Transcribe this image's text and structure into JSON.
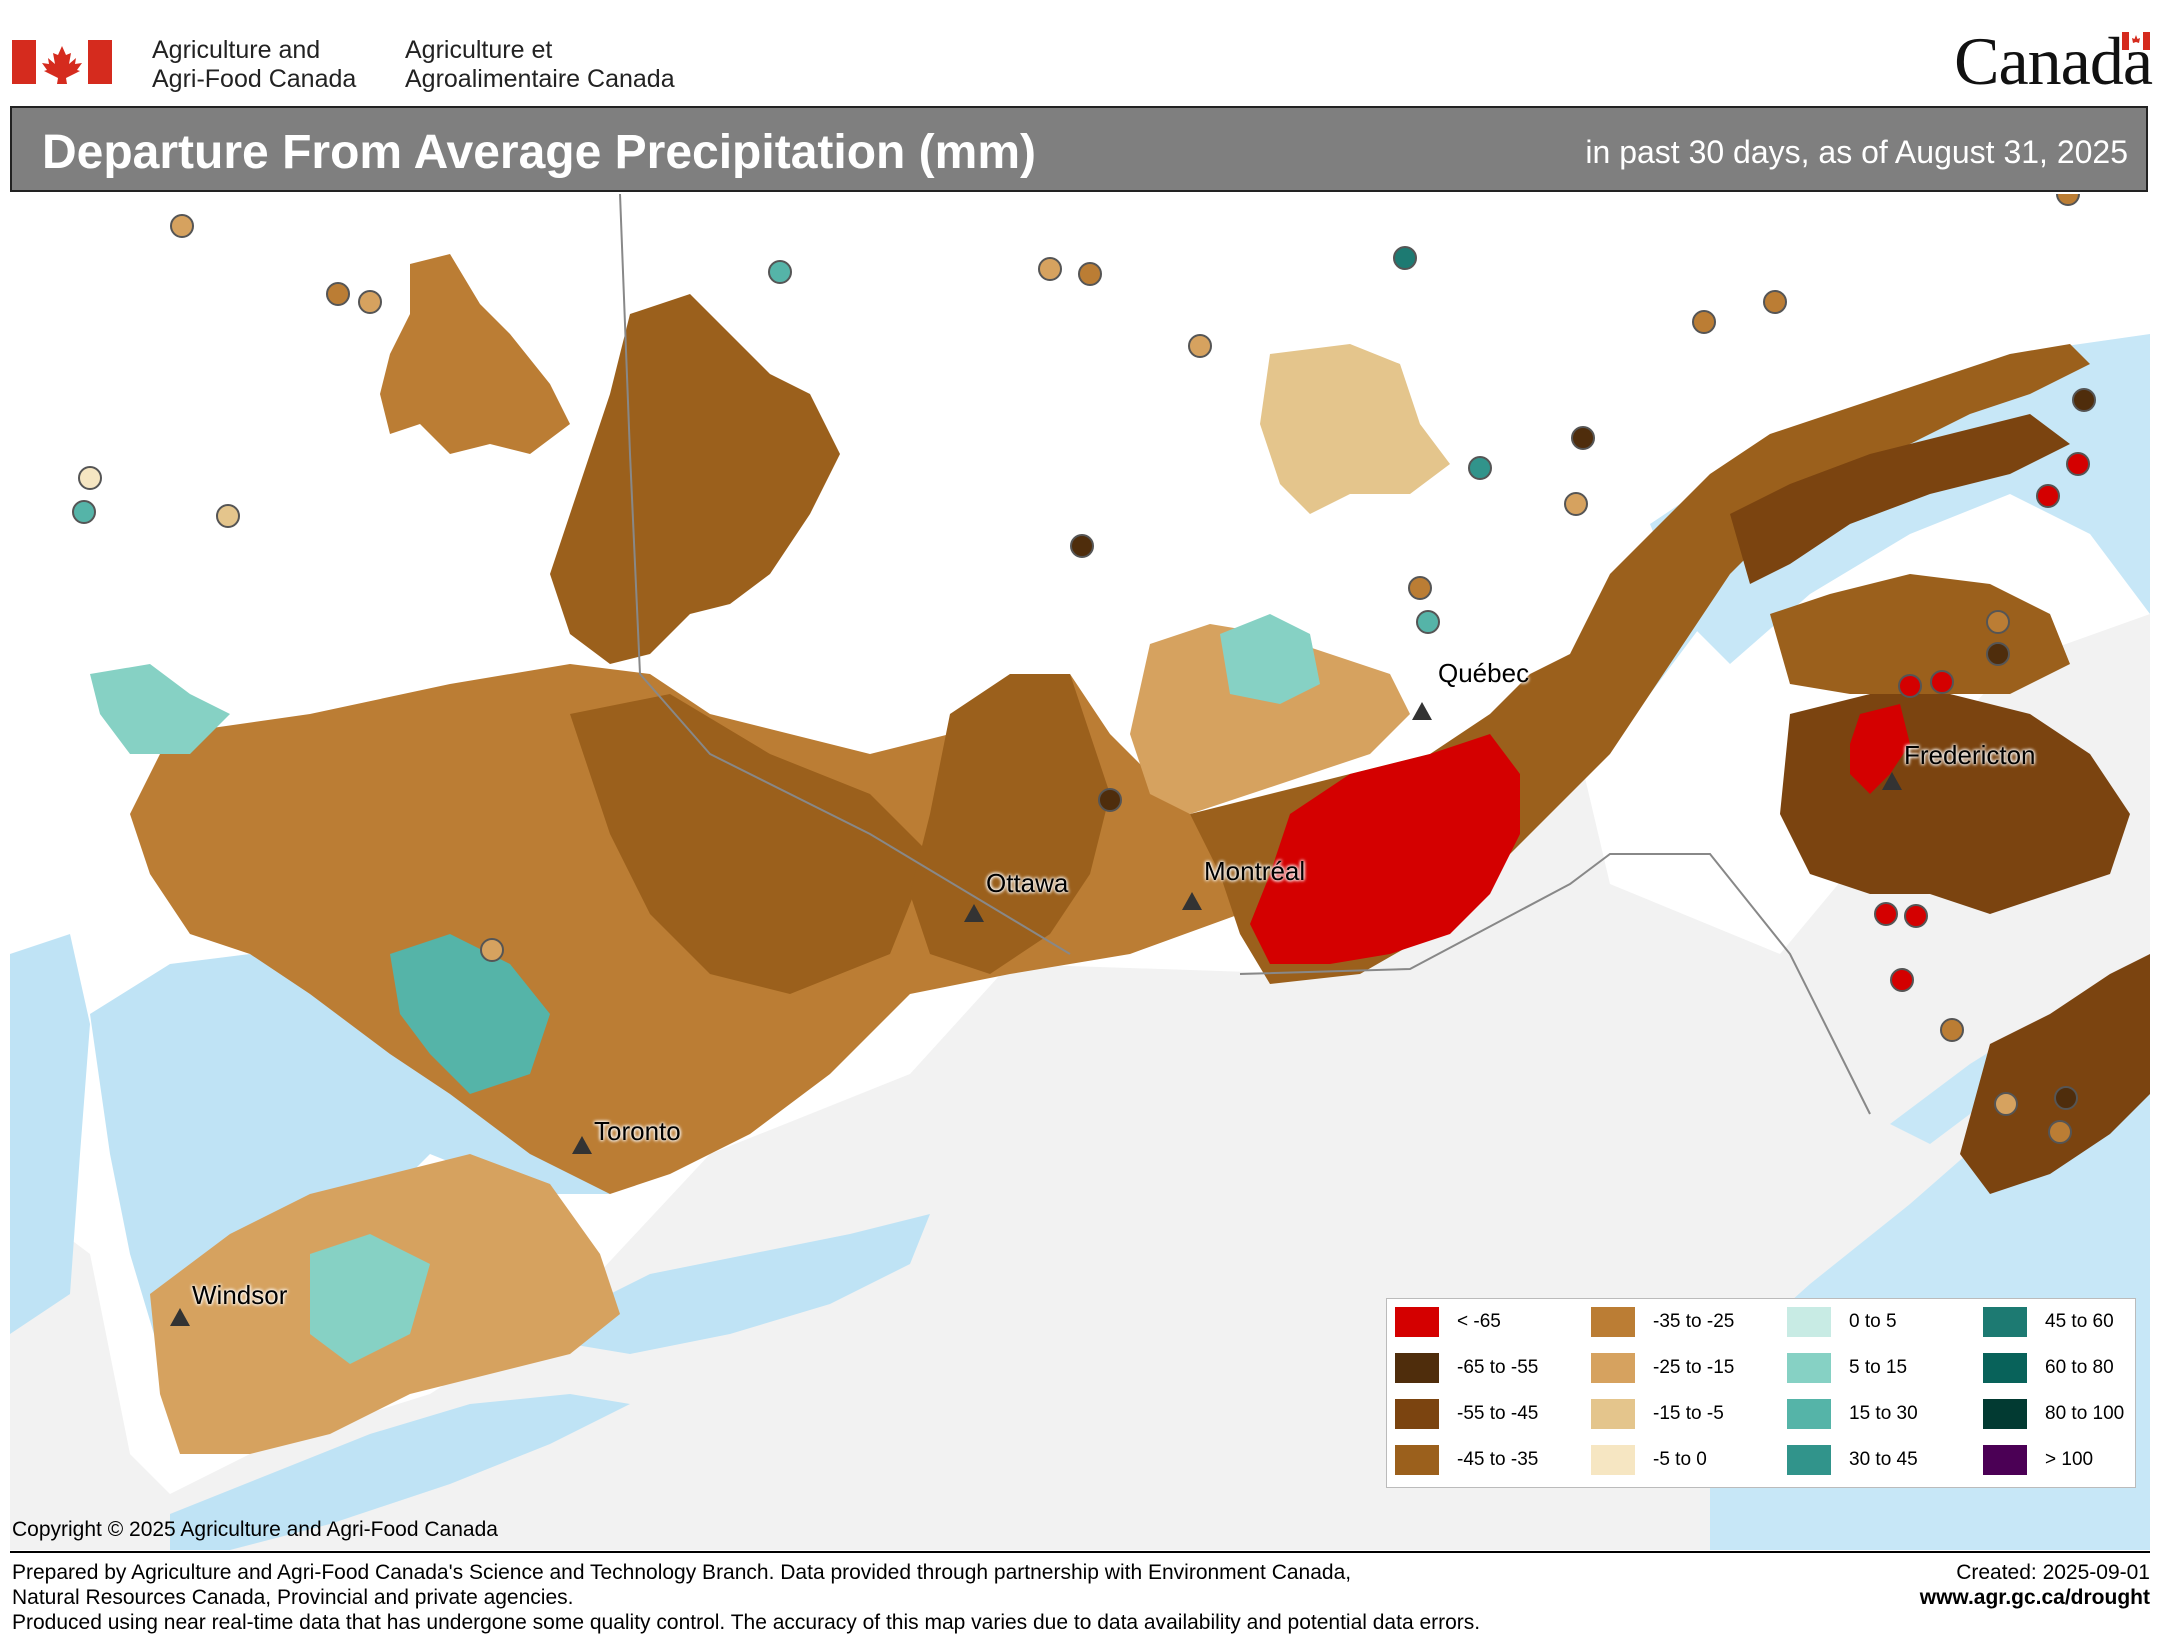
{
  "header": {
    "dept_en_line1": "Agriculture and",
    "dept_en_line2": "Agri-Food Canada",
    "dept_fr_line1": "Agriculture et",
    "dept_fr_line2": "Agroalimentaire Canada",
    "wordmark": "Canadä"
  },
  "title": "Departure From Average Precipitation (mm)",
  "subtitle": "in past 30 days, as of August 31, 2025",
  "cities": [
    {
      "name": "Québec"
    },
    {
      "name": "Fredericton"
    },
    {
      "name": "Ottawa"
    },
    {
      "name": "Montréal"
    },
    {
      "name": "Toronto"
    },
    {
      "name": "Windsor"
    }
  ],
  "legend": [
    {
      "label": "< -65",
      "color": "#d40000"
    },
    {
      "label": "-65 to -55",
      "color": "#4f2d0c"
    },
    {
      "label": "-55 to -45",
      "color": "#7b4410"
    },
    {
      "label": "-45 to -35",
      "color": "#9b601c"
    },
    {
      "label": "-35 to -25",
      "color": "#bb7d34"
    },
    {
      "label": "-25 to -15",
      "color": "#d6a25f"
    },
    {
      "label": "-15 to -5",
      "color": "#e4c58c"
    },
    {
      "label": "-5 to 0",
      "color": "#f6e6c2"
    },
    {
      "label": "0 to 5",
      "color": "#c8ebe4"
    },
    {
      "label": "5 to 15",
      "color": "#86d1c4"
    },
    {
      "label": "15 to 30",
      "color": "#55b4a8"
    },
    {
      "label": "30 to 45",
      "color": "#31948b"
    },
    {
      "label": "45 to 60",
      "color": "#1d7a72"
    },
    {
      "label": "60 to 80",
      "color": "#08625a"
    },
    {
      "label": "80 to 100",
      "color": "#023a32"
    },
    {
      "label": "> 100",
      "color": "#4b0055"
    }
  ],
  "copyright": "Copyright © 2025 Agriculture and Agri-Food Canada",
  "footer": {
    "line1": "Prepared by Agriculture and Agri-Food Canada's Science and Technology Branch. Data provided through partnership with Environment Canada,",
    "line2": "Natural Resources Canada, Provincial and private agencies.",
    "line3": "Produced using near real-time data that has undergone some quality control. The accuracy of this map varies due to data availability and potential data errors.",
    "created": "Created: 2025-09-01",
    "url": "www.agr.gc.ca/drought"
  },
  "colors": {
    "water": "#bfe3f5",
    "land_canada": "#ffffff",
    "land_us": "#f2f2f2",
    "title_bar": "#7f7f7f"
  },
  "icons": [
    "canada-flag-icon",
    "city-marker-icon"
  ]
}
